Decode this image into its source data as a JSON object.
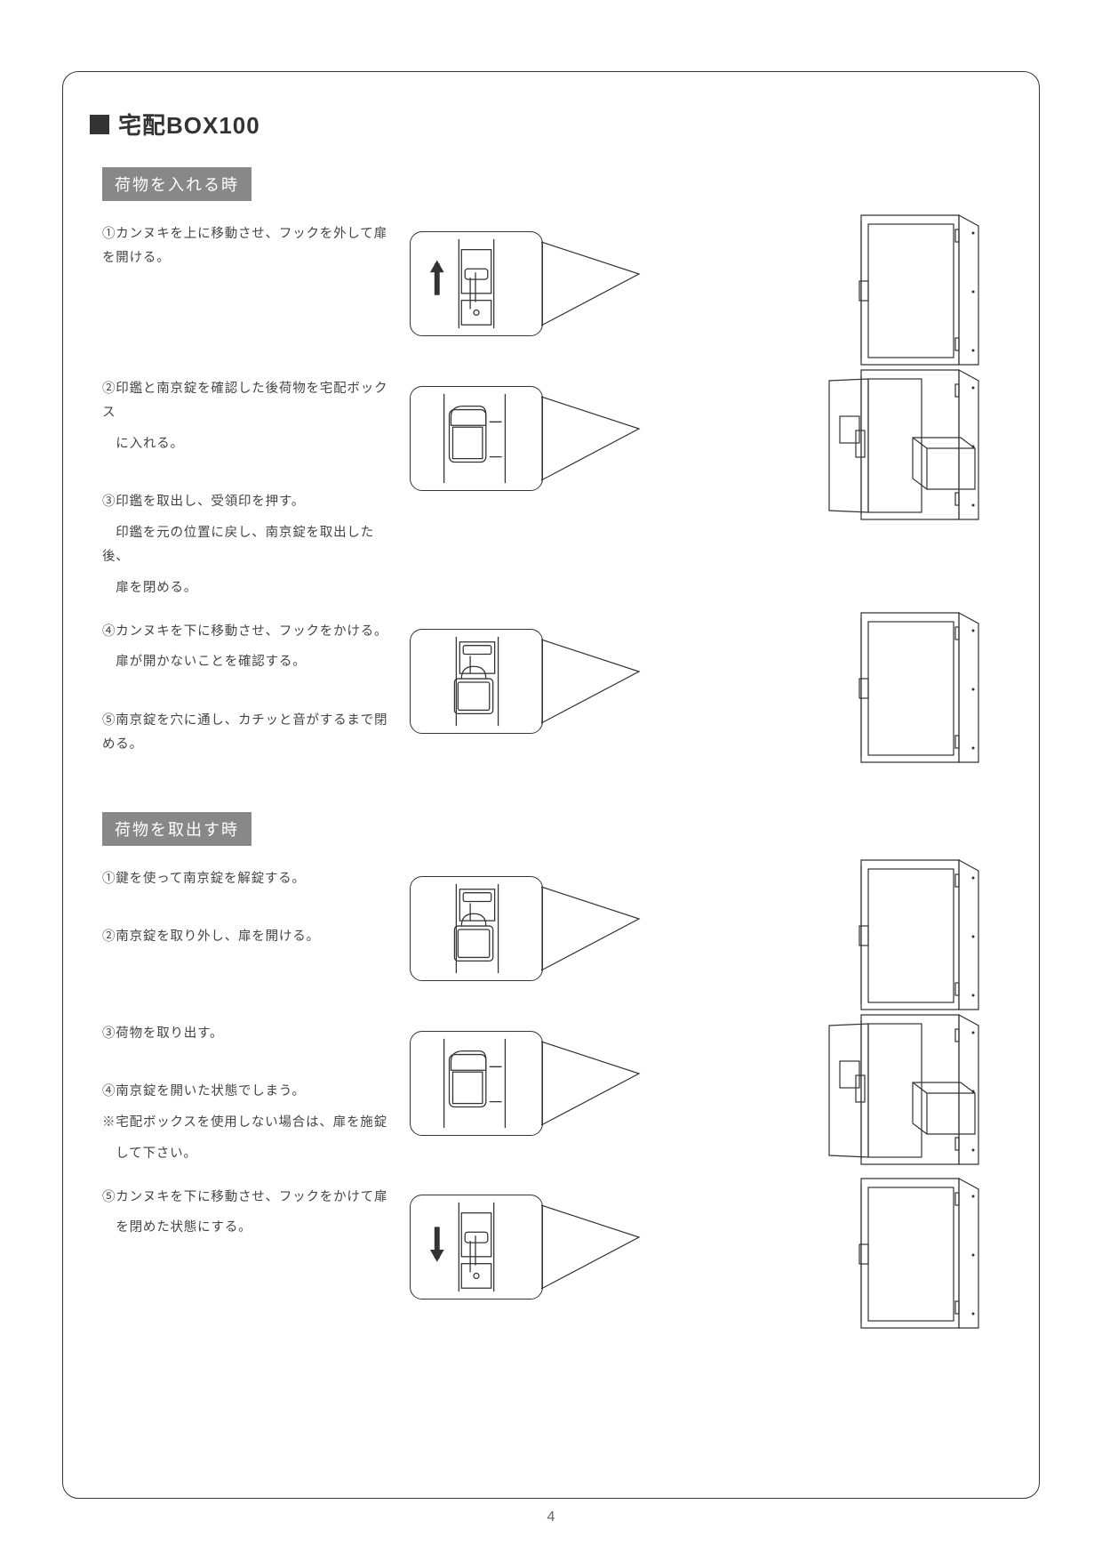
{
  "page_number": "4",
  "title": "宅配BOX100",
  "sections": [
    {
      "header": "荷物を入れる時",
      "rows": [
        {
          "closeup": "latch-up-arrow",
          "box": "box-closed",
          "lines": [
            "①カンヌキを上に移動させ、フックを外して扉を開ける。"
          ]
        },
        {
          "closeup": "stamp-holder",
          "box": "box-open-package",
          "lines": [
            "②印鑑と南京錠を確認した後荷物を宅配ボックス",
            "　に入れる。",
            "",
            "③印鑑を取出し、受領印を押す。",
            "　印鑑を元の位置に戻し、南京錠を取出した後、",
            "　扉を閉める。"
          ]
        },
        {
          "closeup": "padlock-locked",
          "box": "box-closed",
          "lines": [
            "④カンヌキを下に移動させ、フックをかける。",
            "　扉が開かないことを確認する。",
            "",
            "⑤南京錠を穴に通し、カチッと音がするまで閉める。"
          ]
        }
      ]
    },
    {
      "header": "荷物を取出す時",
      "rows": [
        {
          "closeup": "padlock-locked",
          "box": "box-closed",
          "lines": [
            "①鍵を使って南京錠を解錠する。",
            "",
            "②南京錠を取り外し、扉を開ける。"
          ]
        },
        {
          "closeup": "stamp-holder",
          "box": "box-open-package",
          "lines": [
            "③荷物を取り出す。",
            "",
            "④南京錠を開いた状態でしまう。",
            "※宅配ボックスを使用しない場合は、扉を施錠",
            "　して下さい。"
          ]
        },
        {
          "closeup": "latch-down-arrow",
          "box": "box-closed",
          "lines": [
            "⑤カンヌキを下に移動させ、フックをかけて扉",
            "　を閉めた状態にする。"
          ]
        }
      ]
    }
  ],
  "style": {
    "stroke": "#333333",
    "fill_light": "#d8d8d8",
    "fill_mid": "#bfbfbf",
    "fill_dark": "#9a9a9a",
    "bg": "#ffffff"
  }
}
